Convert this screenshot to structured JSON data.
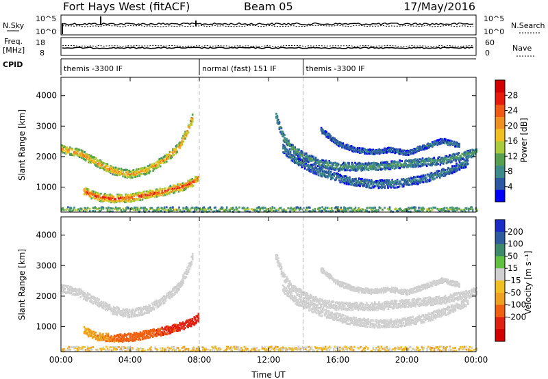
{
  "header": {
    "radar": "Fort Hays West (fitACF)",
    "beam": "Beam 05",
    "date": "17/May/2016"
  },
  "panels": {
    "nsky": {
      "label": "N.Sky",
      "left_ticks": [
        "10^5",
        "10^0"
      ],
      "right_ticks": [
        "10^5",
        "10^0"
      ],
      "right_label": "N.Search"
    },
    "freq": {
      "label_line1": "Freq.",
      "label_line2": "[MHz]",
      "left_ticks": [
        "18",
        "8"
      ],
      "right_ticks": [
        "60",
        "0"
      ],
      "right_label": "Nave"
    },
    "cpid": {
      "label": "CPID",
      "segments": [
        {
          "start_hour": 0,
          "end_hour": 8,
          "text": "themis -3300 IF"
        },
        {
          "start_hour": 8,
          "end_hour": 14,
          "text": "normal (fast) 151 IF"
        },
        {
          "start_hour": 14,
          "end_hour": 24,
          "text": "themis -3300 IF"
        }
      ]
    }
  },
  "chart_data": [
    {
      "type": "heatmap",
      "title": "",
      "xlabel": "",
      "ylabel": "Slant Range [km]",
      "xlim": [
        0,
        24
      ],
      "ylim": [
        180,
        4600
      ],
      "yticks": [
        1000,
        2000,
        3000,
        4000
      ],
      "ytick_labels": [
        "1000",
        "2000",
        "3000",
        "4000"
      ],
      "colorbar": {
        "label": "Power [dB]",
        "range": [
          0,
          32
        ],
        "ticks": [
          4,
          8,
          12,
          16,
          20,
          24,
          28
        ],
        "tick_labels": [
          "4",
          "8",
          "12",
          "16",
          "20",
          "24",
          "28"
        ],
        "colors": [
          "#0000ff",
          "#2c57a2",
          "#3d8a8a",
          "#57a050",
          "#a9cb3c",
          "#f0c020",
          "#f09020",
          "#f05a14",
          "#e81a0c",
          "#d40000"
        ]
      },
      "echo_features": [
        {
          "name": "evening ionospheric band",
          "path": [
            [
              0,
              2280
            ],
            [
              1,
              2150
            ],
            [
              2,
              1850
            ],
            [
              3,
              1560
            ],
            [
              4,
              1450
            ],
            [
              5,
              1600
            ],
            [
              6,
              1950
            ],
            [
              6.8,
              2350
            ],
            [
              7.3,
              2900
            ],
            [
              7.6,
              3350
            ]
          ],
          "power_db": 22
        },
        {
          "name": "near range band",
          "path": [
            [
              1.3,
              900
            ],
            [
              2,
              720
            ],
            [
              3,
              650
            ],
            [
              4,
              680
            ],
            [
              5,
              780
            ],
            [
              6,
              900
            ],
            [
              7,
              1050
            ],
            [
              7.6,
              1200
            ],
            [
              7.95,
              1350
            ]
          ],
          "power_db": 26
        },
        {
          "name": "morning ionospheric band",
          "path": [
            [
              12.4,
              3350
            ],
            [
              12.8,
              2700
            ],
            [
              13.3,
              2300
            ],
            [
              14,
              2050
            ],
            [
              15,
              1800
            ],
            [
              16,
              1700
            ],
            [
              18,
              1700
            ],
            [
              20,
              1800
            ],
            [
              22,
              1900
            ],
            [
              23.5,
              2100
            ],
            [
              24,
              2200
            ]
          ],
          "power_db": 10
        },
        {
          "name": "morning lower band",
          "path": [
            [
              12.8,
              2300
            ],
            [
              13.5,
              1900
            ],
            [
              15,
              1500
            ],
            [
              16.5,
              1250
            ],
            [
              18,
              1120
            ],
            [
              19.5,
              1150
            ],
            [
              21,
              1300
            ],
            [
              22.5,
              1600
            ],
            [
              23.5,
              1850
            ]
          ],
          "power_db": 8
        },
        {
          "name": "morning upper band",
          "path": [
            [
              15,
              2900
            ],
            [
              16,
              2450
            ],
            [
              17,
              2250
            ],
            [
              18,
              2180
            ],
            [
              19,
              2250
            ],
            [
              20,
              2150
            ],
            [
              21,
              2350
            ],
            [
              22,
              2550
            ],
            [
              23,
              2400
            ]
          ],
          "power_db": 7
        },
        {
          "name": "ground near-range clutter",
          "path": [
            [
              0,
              300
            ],
            [
              6,
              300
            ],
            [
              12,
              300
            ],
            [
              18,
              300
            ],
            [
              24,
              300
            ]
          ],
          "power_db": 14
        }
      ]
    },
    {
      "type": "heatmap",
      "title": "",
      "xlabel": "Time UT",
      "ylabel": "Slant Range [km]",
      "xlim": [
        0,
        24
      ],
      "ylim": [
        180,
        4600
      ],
      "xticks": [
        0,
        4,
        8,
        12,
        16,
        20,
        24
      ],
      "xtick_labels": [
        "00:00",
        "04:00",
        "08:00",
        "12:00",
        "16:00",
        "20:00",
        "00:00"
      ],
      "yticks": [
        1000,
        2000,
        3000,
        4000
      ],
      "ytick_labels": [
        "1000",
        "2000",
        "3000",
        "4000"
      ],
      "colorbar": {
        "label": "Velocity [m s⁻¹]",
        "range": [
          -250,
          250
        ],
        "ticks": [
          200,
          100,
          50,
          15,
          -15,
          -50,
          -100,
          -200
        ],
        "tick_labels": [
          "200",
          "100",
          "50",
          "15",
          "-15",
          "-50",
          "-100",
          "-200"
        ],
        "colors": [
          "#1a2cc8",
          "#2e5a9e",
          "#3c8a6a",
          "#60c040",
          "#d0d0d0",
          "#f0c020",
          "#f0a020",
          "#f06010",
          "#e02010",
          "#d40000"
        ]
      },
      "echo_features": [
        {
          "name": "evening ionospheric band",
          "path": [
            [
              0,
              2280
            ],
            [
              1,
              2150
            ],
            [
              2,
              1850
            ],
            [
              3,
              1560
            ],
            [
              4,
              1450
            ],
            [
              5,
              1600
            ],
            [
              6,
              1950
            ],
            [
              6.8,
              2350
            ],
            [
              7.3,
              2900
            ],
            [
              7.6,
              3350
            ]
          ],
          "velocity": 0
        },
        {
          "name": "near range band",
          "path": [
            [
              1.3,
              900
            ],
            [
              2,
              720
            ],
            [
              3,
              650
            ],
            [
              4,
              680
            ],
            [
              5,
              780
            ],
            [
              6,
              900
            ],
            [
              7,
              1050
            ],
            [
              7.6,
              1200
            ],
            [
              7.95,
              1350
            ]
          ],
          "velocity": -80
        },
        {
          "name": "morning ionospheric band",
          "path": [
            [
              12.4,
              3350
            ],
            [
              12.8,
              2700
            ],
            [
              13.3,
              2300
            ],
            [
              14,
              2050
            ],
            [
              15,
              1800
            ],
            [
              16,
              1700
            ],
            [
              18,
              1700
            ],
            [
              20,
              1800
            ],
            [
              22,
              1900
            ],
            [
              23.5,
              2100
            ],
            [
              24,
              2200
            ]
          ],
          "velocity": 0
        },
        {
          "name": "morning lower band",
          "path": [
            [
              12.8,
              2300
            ],
            [
              13.5,
              1900
            ],
            [
              15,
              1500
            ],
            [
              16.5,
              1250
            ],
            [
              18,
              1120
            ],
            [
              19.5,
              1150
            ],
            [
              21,
              1300
            ],
            [
              22.5,
              1600
            ],
            [
              23.5,
              1850
            ]
          ],
          "velocity": 0
        },
        {
          "name": "morning upper band",
          "path": [
            [
              15,
              2900
            ],
            [
              16,
              2450
            ],
            [
              17,
              2250
            ],
            [
              18,
              2180
            ],
            [
              19,
              2250
            ],
            [
              20,
              2150
            ],
            [
              21,
              2350
            ],
            [
              22,
              2550
            ],
            [
              23,
              2400
            ]
          ],
          "velocity": 0
        },
        {
          "name": "ground near-range clutter",
          "path": [
            [
              0,
              300
            ],
            [
              6,
              300
            ],
            [
              12,
              300
            ],
            [
              18,
              300
            ],
            [
              24,
              300
            ]
          ],
          "velocity": -20
        }
      ]
    }
  ]
}
